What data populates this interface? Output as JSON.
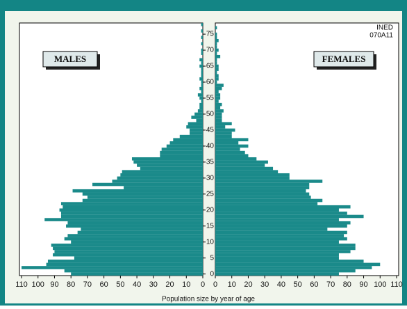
{
  "chart_data": {
    "type": "pyramid",
    "x_label": "Population size by year of age",
    "annotation": [
      "INED",
      "070A11"
    ],
    "categories": [
      0,
      1,
      2,
      3,
      4,
      5,
      6,
      7,
      8,
      9,
      10,
      11,
      12,
      13,
      14,
      15,
      16,
      17,
      18,
      19,
      20,
      21,
      22,
      23,
      24,
      25,
      26,
      27,
      28,
      29,
      30,
      31,
      32,
      33,
      34,
      35,
      36,
      37,
      38,
      39,
      40,
      41,
      42,
      43,
      44,
      45,
      46,
      47,
      48,
      49,
      50,
      51,
      52,
      53,
      54,
      55,
      56,
      57,
      58,
      59,
      60,
      61,
      62,
      63,
      64,
      65,
      66,
      67,
      68,
      69,
      70,
      71,
      72,
      73,
      74,
      75,
      76,
      77,
      78
    ],
    "series": [
      {
        "name": "MALES",
        "color": "#1a8a8a",
        "values": [
          80,
          84,
          110,
          95,
          94,
          78,
          91,
          90,
          91,
          92,
          80,
          84,
          82,
          76,
          74,
          83,
          82,
          96,
          86,
          86,
          87,
          85,
          86,
          73,
          70,
          73,
          79,
          48,
          67,
          55,
          52,
          50,
          49,
          38,
          40,
          42,
          43,
          26,
          26,
          25,
          22,
          20,
          18,
          14,
          8,
          8,
          10,
          9,
          4,
          7,
          5,
          3,
          2,
          2,
          1,
          2,
          3,
          1,
          2,
          1,
          1,
          2,
          1,
          1,
          1,
          2,
          1,
          2,
          0,
          1,
          1,
          0,
          1,
          0,
          1,
          0,
          1,
          0,
          1
        ]
      },
      {
        "name": "FEMALES",
        "color": "#1a8a8a",
        "values": [
          75,
          85,
          95,
          100,
          90,
          75,
          75,
          82,
          85,
          85,
          75,
          80,
          78,
          80,
          68,
          80,
          82,
          75,
          90,
          80,
          75,
          82,
          62,
          65,
          58,
          57,
          55,
          57,
          57,
          65,
          45,
          45,
          38,
          35,
          30,
          32,
          25,
          20,
          18,
          15,
          20,
          14,
          20,
          10,
          10,
          12,
          6,
          10,
          4,
          4,
          4,
          5,
          3,
          4,
          2,
          3,
          3,
          2,
          4,
          5,
          1,
          2,
          2,
          1,
          2,
          2,
          1,
          1,
          3,
          1,
          2,
          1,
          1,
          2,
          1,
          1,
          0,
          1,
          0
        ]
      }
    ],
    "xlim": [
      0,
      110
    ],
    "xticks": [
      0,
      10,
      20,
      30,
      40,
      50,
      60,
      70,
      80,
      90,
      100,
      110
    ],
    "ylim": [
      -0.5,
      78.5
    ],
    "yticks": [
      0,
      5,
      10,
      15,
      20,
      25,
      30,
      35,
      40,
      45,
      50,
      55,
      60,
      65,
      70,
      75
    ],
    "grid": false
  }
}
